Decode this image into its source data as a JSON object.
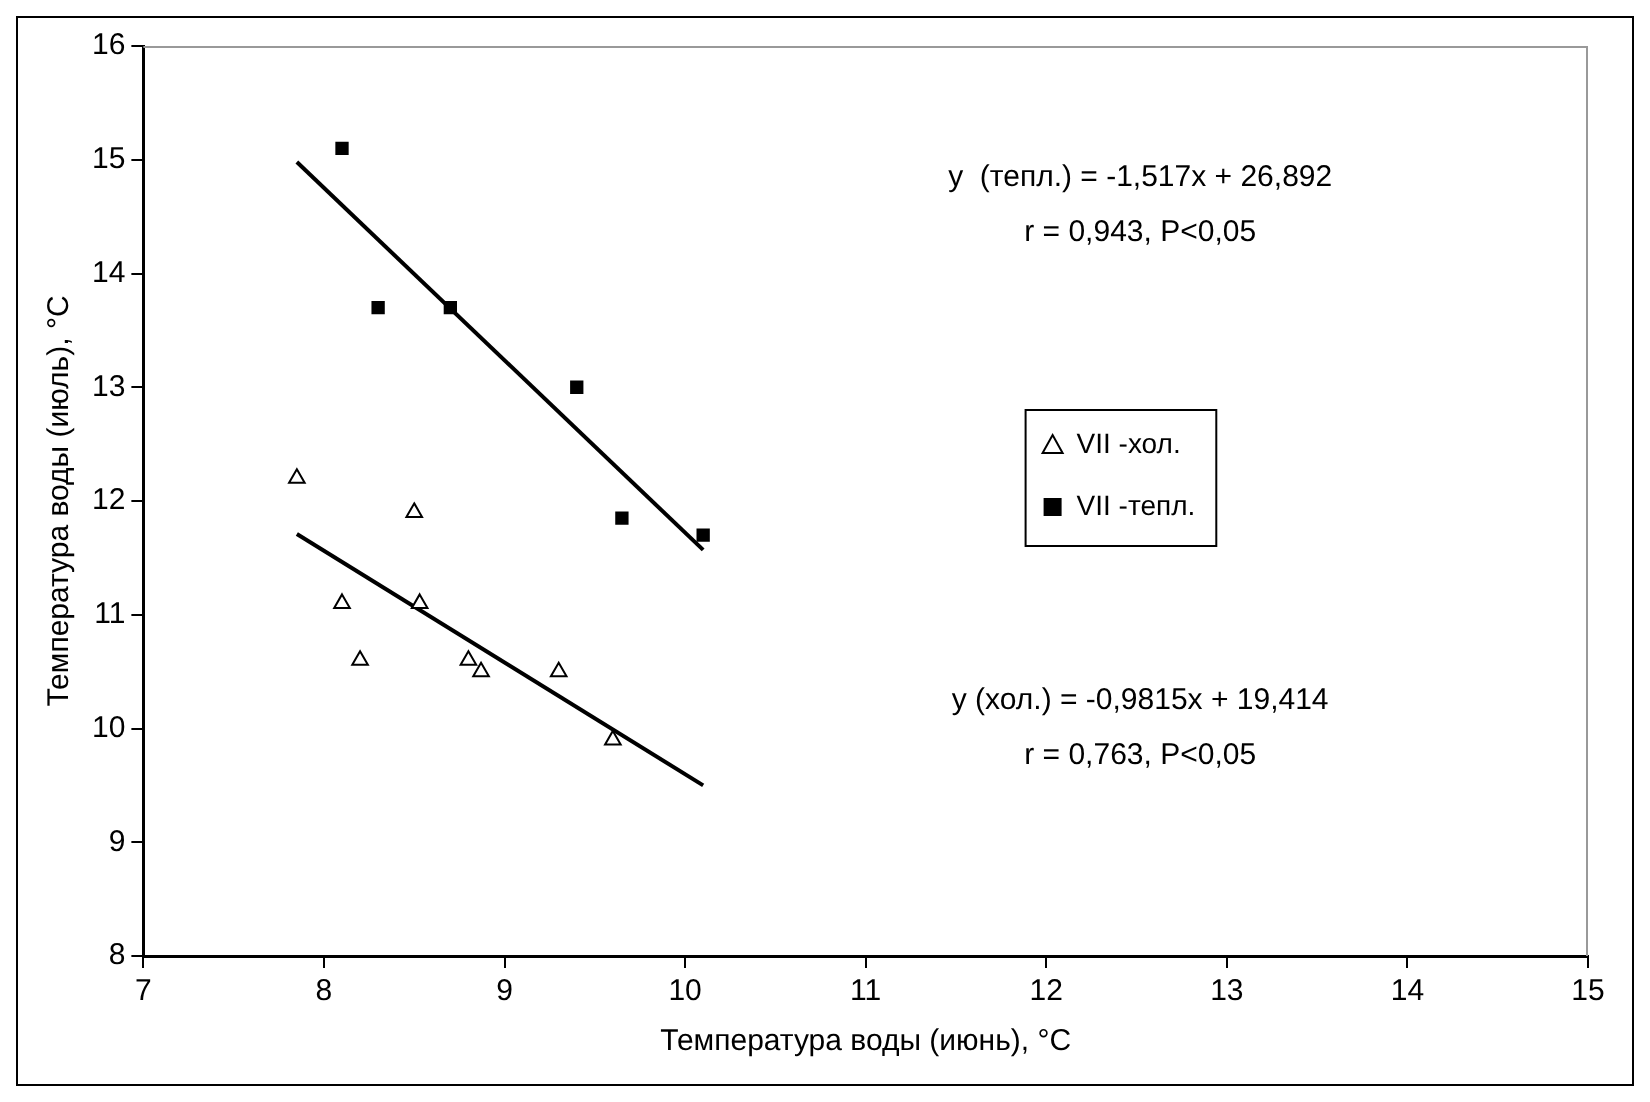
{
  "chart_data": {
    "type": "scatter",
    "xlabel": "Температура воды (июнь), °C",
    "ylabel": "Температура воды (июль), °C",
    "xlim": [
      7,
      15
    ],
    "xticks": [
      7,
      8,
      9,
      10,
      11,
      12,
      13,
      14,
      15
    ],
    "ylim": [
      8,
      16
    ],
    "yticks": [
      8,
      9,
      10,
      11,
      12,
      13,
      14,
      15,
      16
    ],
    "grid": false,
    "legend": "right",
    "series": [
      {
        "name": "VII -хол.",
        "color": "#000000",
        "marker": "triangle",
        "x": [
          7.85,
          8.1,
          8.2,
          8.5,
          8.53,
          8.8,
          8.87,
          9.3,
          9.6
        ],
        "values": [
          12.2,
          11.1,
          10.6,
          11.9,
          11.1,
          10.6,
          10.5,
          10.5,
          9.9
        ]
      },
      {
        "name": "VII -тепл.",
        "color": "#000000",
        "marker": "square",
        "x": [
          8.1,
          8.3,
          8.7,
          9.4,
          9.65,
          10.1
        ],
        "values": [
          15.1,
          13.7,
          13.7,
          13.0,
          11.85,
          11.7
        ]
      },
      {
        "type": "line",
        "color": "#000000",
        "marker": "none",
        "x": [
          7.85,
          10.1
        ],
        "values": [
          14.98,
          11.57
        ]
      },
      {
        "type": "line",
        "color": "#000000",
        "marker": "none",
        "x": [
          7.85,
          10.1
        ],
        "values": [
          11.71,
          9.5
        ]
      }
    ],
    "annotations": [
      "y  (тепл.) = -1,517x + 26,892",
      "r = 0,943, P<0,05",
      "y (хол.) = -0,9815x + 19,414",
      "r = 0,763, P<0,05"
    ]
  }
}
